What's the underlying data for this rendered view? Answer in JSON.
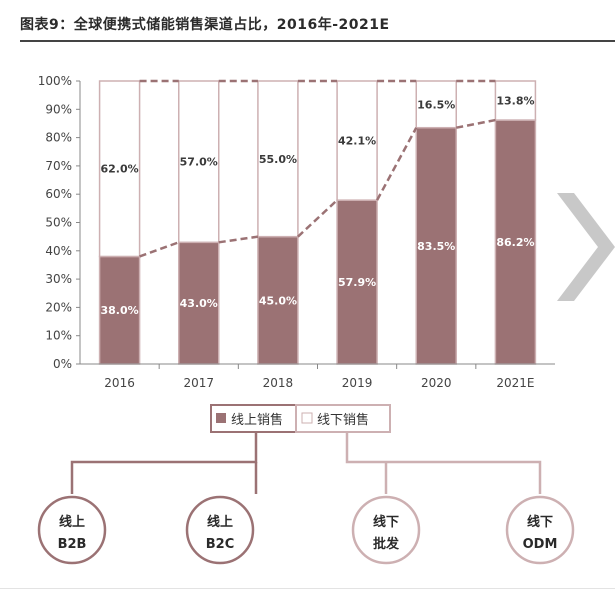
{
  "header": {
    "title": "图表9：全球便携式储能销售渠道占比，2016年-2021E"
  },
  "colors": {
    "online": "#9b7274",
    "offline_border": "#cdb0b2",
    "arrow": "#c8c8c8"
  },
  "chart_data": {
    "type": "bar",
    "stacked": true,
    "categories": [
      "2016",
      "2017",
      "2018",
      "2019",
      "2020",
      "2021E"
    ],
    "series": [
      {
        "name": "线上销售",
        "values": [
          38.0,
          43.0,
          45.0,
          57.9,
          83.5,
          86.2
        ],
        "labels": [
          "38.0%",
          "43.0%",
          "45.0%",
          "57.9%",
          "83.5%",
          "86.2%"
        ]
      },
      {
        "name": "线下销售",
        "values": [
          62.0,
          57.0,
          55.0,
          42.1,
          16.5,
          13.8
        ],
        "labels": [
          "62.0%",
          "57.0%",
          "55.0%",
          "42.1%",
          "16.5%",
          "13.8%"
        ]
      }
    ],
    "yticks": [
      "0%",
      "10%",
      "20%",
      "30%",
      "40%",
      "50%",
      "60%",
      "70%",
      "80%",
      "90%",
      "100%"
    ],
    "ylim": [
      0,
      100
    ],
    "legend_position": "bottom",
    "connector_lines": "dashed"
  },
  "channels": [
    {
      "line1": "线上",
      "line2": "B2B",
      "group": "online"
    },
    {
      "line1": "线上",
      "line2": "B2C",
      "group": "online"
    },
    {
      "line1": "线下",
      "line2": "批发",
      "group": "offline"
    },
    {
      "line1": "线下",
      "line2": "ODM",
      "group": "offline"
    }
  ]
}
